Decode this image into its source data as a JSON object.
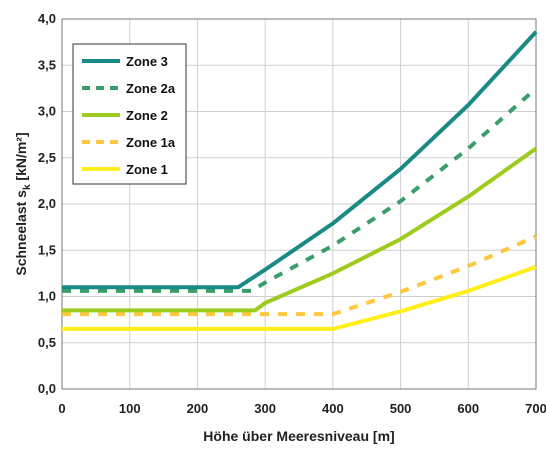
{
  "chart_data": {
    "type": "line",
    "xlabel": "Höhe über Meeresniveau  [m]",
    "ylabel_main": "Schneelast  s",
    "ylabel_sub": "k",
    "ylabel_unit": " [kN/m²]",
    "xlim": [
      0,
      700
    ],
    "ylim": [
      0,
      4
    ],
    "x_ticks": [
      0,
      100,
      200,
      300,
      400,
      500,
      600,
      700
    ],
    "y_ticks": [
      "0,0",
      "0,5",
      "1,0",
      "1,5",
      "2,0",
      "2,5",
      "3,0",
      "3,5",
      "4,0"
    ],
    "y_tick_values": [
      0,
      0.5,
      1.0,
      1.5,
      2.0,
      2.5,
      3.0,
      3.5,
      4.0
    ],
    "x_tick_labels": [
      "0",
      "100",
      "200",
      "300",
      "400",
      "500",
      "600",
      "700"
    ],
    "grid": true,
    "legend_position": "top-left",
    "series": [
      {
        "name": "Zone 3",
        "color": "#1a8a85",
        "dashed": false,
        "points": [
          [
            0,
            1.1
          ],
          [
            260,
            1.1
          ],
          [
            300,
            1.29
          ],
          [
            400,
            1.79
          ],
          [
            500,
            2.38
          ],
          [
            600,
            3.07
          ],
          [
            700,
            3.86
          ]
        ]
      },
      {
        "name": "Zone 2a",
        "color": "#3a9e6c",
        "dashed": true,
        "points": [
          [
            0,
            1.06
          ],
          [
            280,
            1.06
          ],
          [
            300,
            1.15
          ],
          [
            400,
            1.55
          ],
          [
            500,
            2.03
          ],
          [
            600,
            2.6
          ],
          [
            700,
            3.25
          ]
        ]
      },
      {
        "name": "Zone 2",
        "color": "#9ccc1e",
        "dashed": false,
        "points": [
          [
            0,
            0.85
          ],
          [
            285,
            0.85
          ],
          [
            300,
            0.93
          ],
          [
            400,
            1.25
          ],
          [
            500,
            1.62
          ],
          [
            600,
            2.08
          ],
          [
            700,
            2.6
          ]
        ]
      },
      {
        "name": "Zone 1a",
        "color": "#ffc640",
        "dashed": true,
        "points": [
          [
            0,
            0.81
          ],
          [
            400,
            0.81
          ],
          [
            500,
            1.05
          ],
          [
            600,
            1.33
          ],
          [
            700,
            1.65
          ]
        ]
      },
      {
        "name": "Zone 1",
        "color": "#ffee1a",
        "dashed": false,
        "points": [
          [
            0,
            0.65
          ],
          [
            400,
            0.65
          ],
          [
            500,
            0.84
          ],
          [
            600,
            1.06
          ],
          [
            700,
            1.32
          ]
        ]
      }
    ]
  }
}
